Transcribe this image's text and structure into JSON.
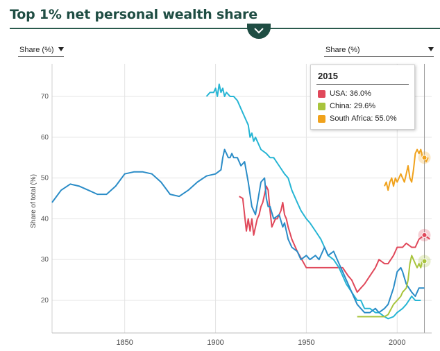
{
  "header": {
    "title": "Top 1% net personal wealth share"
  },
  "controls": {
    "left_dropdown": "Share (%)",
    "right_dropdown": "Share (%)"
  },
  "tooltip": {
    "year": "2015",
    "rows": [
      {
        "text": "USA: 36.0%",
        "color": "#e0485a"
      },
      {
        "text": "China: 29.6%",
        "color": "#a8c43c"
      },
      {
        "text": "South Africa: 55.0%",
        "color": "#f0a21c"
      }
    ]
  },
  "chart_data": {
    "type": "line",
    "title": "Top 1% net personal wealth share",
    "ylabel": "Share of total (%)",
    "xlabel": "",
    "xlim": [
      1810,
      2019
    ],
    "ylim": [
      12,
      78
    ],
    "x_ticks": [
      1850,
      1900,
      1950,
      2000
    ],
    "y_ticks": [
      20,
      30,
      40,
      50,
      60,
      70
    ],
    "hover_year": 2015,
    "series": [
      {
        "color": "#e0485a",
        "x": [
          1913,
          1915,
          1917,
          1918,
          1919,
          1920,
          1921,
          1922,
          1923,
          1924,
          1925,
          1926,
          1927,
          1928,
          1929,
          1930,
          1931,
          1932,
          1933,
          1934,
          1935,
          1936,
          1937,
          1938,
          1939,
          1940,
          1942,
          1945,
          1950,
          1955,
          1960,
          1965,
          1970,
          1973,
          1975,
          1978,
          1980,
          1982,
          1985,
          1988,
          1990,
          1993,
          1995,
          1998,
          2000,
          2003,
          2005,
          2008,
          2010,
          2012,
          2015,
          2018
        ],
        "y": [
          45.5,
          45,
          37,
          40,
          37,
          40,
          36,
          38,
          40,
          41,
          43,
          44,
          46,
          48,
          47,
          42,
          38,
          39,
          40,
          40,
          41,
          42,
          44,
          41,
          40,
          38,
          35,
          32,
          28,
          28,
          28,
          28,
          28,
          26,
          25,
          22,
          23,
          24,
          26,
          28,
          30,
          29,
          29,
          31,
          33,
          33,
          34,
          33,
          33,
          35,
          36,
          35
        ]
      },
      {
        "color": "#26b5d4",
        "x": [
          1895,
          1897,
          1899,
          1900,
          1901,
          1902,
          1903,
          1904,
          1905,
          1906,
          1908,
          1910,
          1912,
          1914,
          1916,
          1918,
          1919,
          1920,
          1921,
          1922,
          1925,
          1928,
          1930,
          1932,
          1935,
          1938,
          1940,
          1942,
          1945,
          1947,
          1950,
          1952,
          1955,
          1958,
          1960,
          1962,
          1965,
          1968,
          1970,
          1972,
          1975,
          1978,
          1980,
          1982,
          1985,
          1988,
          1990,
          1993,
          1995,
          1998,
          2000,
          2003,
          2005,
          2008,
          2010,
          2013
        ],
        "y": [
          70,
          71,
          71,
          72,
          70,
          73,
          71,
          72,
          70,
          71,
          70,
          70,
          69,
          67,
          65,
          63,
          60,
          61,
          59,
          60,
          57,
          56,
          55,
          55,
          53,
          51,
          50,
          47,
          44,
          42,
          40,
          39,
          37,
          35,
          33,
          31,
          30,
          28,
          26,
          24,
          22,
          20,
          20,
          18,
          18,
          17,
          17,
          16,
          15.5,
          16,
          17,
          18,
          19,
          21,
          20,
          20
        ]
      },
      {
        "color": "#2a8cc7",
        "x": [
          1810,
          1815,
          1820,
          1825,
          1830,
          1835,
          1840,
          1845,
          1850,
          1855,
          1860,
          1865,
          1870,
          1875,
          1880,
          1885,
          1890,
          1895,
          1900,
          1903,
          1904,
          1905,
          1906,
          1907,
          1908,
          1909,
          1910,
          1912,
          1914,
          1916,
          1918,
          1920,
          1922,
          1925,
          1927,
          1928,
          1929,
          1930,
          1932,
          1935,
          1937,
          1938,
          1940,
          1942,
          1945,
          1947,
          1950,
          1952,
          1955,
          1957,
          1960,
          1962,
          1965,
          1968,
          1970,
          1972,
          1975,
          1978,
          1980,
          1982,
          1985,
          1988,
          1990,
          1993,
          1995,
          1998,
          2000,
          2002,
          2003,
          2005,
          2008,
          2010,
          2012,
          2015
        ],
        "y": [
          44,
          47,
          48.5,
          48,
          47,
          46,
          46,
          48,
          51,
          51.5,
          51.5,
          51,
          49,
          46,
          45.5,
          47,
          49,
          50.5,
          51,
          52,
          55,
          57,
          56,
          55,
          55,
          56,
          55,
          55,
          53,
          54,
          49,
          43,
          41,
          49,
          50,
          45,
          43,
          43,
          40,
          41,
          38,
          39,
          35,
          33,
          32,
          30,
          31,
          30,
          31,
          30,
          33,
          31,
          32,
          29,
          27,
          25,
          22,
          19,
          18,
          17,
          17,
          18,
          17,
          18,
          19,
          23,
          27,
          28,
          27,
          24,
          22,
          21,
          23,
          23
        ]
      },
      {
        "color": "#a8c43c",
        "x": [
          1978,
          1980,
          1982,
          1985,
          1988,
          1990,
          1993,
          1995,
          1998,
          2000,
          2002,
          2003,
          2005,
          2006,
          2007,
          2008,
          2010,
          2011,
          2012,
          2013,
          2014,
          2015
        ],
        "y": [
          16,
          16,
          16,
          16,
          16,
          16,
          16,
          16.5,
          19,
          20,
          21,
          22,
          23,
          25,
          29,
          31,
          29,
          28,
          29,
          28,
          30,
          29.6
        ]
      },
      {
        "color": "#f0a21c",
        "x": [
          1993,
          1994,
          1995,
          1996,
          1997,
          1998,
          1999,
          2000,
          2001,
          2002,
          2003,
          2004,
          2005,
          2006,
          2007,
          2008,
          2009,
          2010,
          2011,
          2012,
          2013,
          2014,
          2015,
          2016,
          2017
        ],
        "y": [
          48,
          49,
          47,
          49,
          50,
          48,
          50,
          49,
          50,
          51,
          50,
          49,
          51,
          53,
          50,
          49,
          52,
          56,
          57,
          56,
          57,
          55,
          55,
          54,
          55
        ]
      }
    ],
    "hover_points": [
      {
        "x": 2015,
        "y": 36.0,
        "color": "#e0485a"
      },
      {
        "x": 2015,
        "y": 29.6,
        "color": "#a8c43c"
      },
      {
        "x": 2015,
        "y": 55.0,
        "color": "#f0a21c"
      }
    ]
  }
}
